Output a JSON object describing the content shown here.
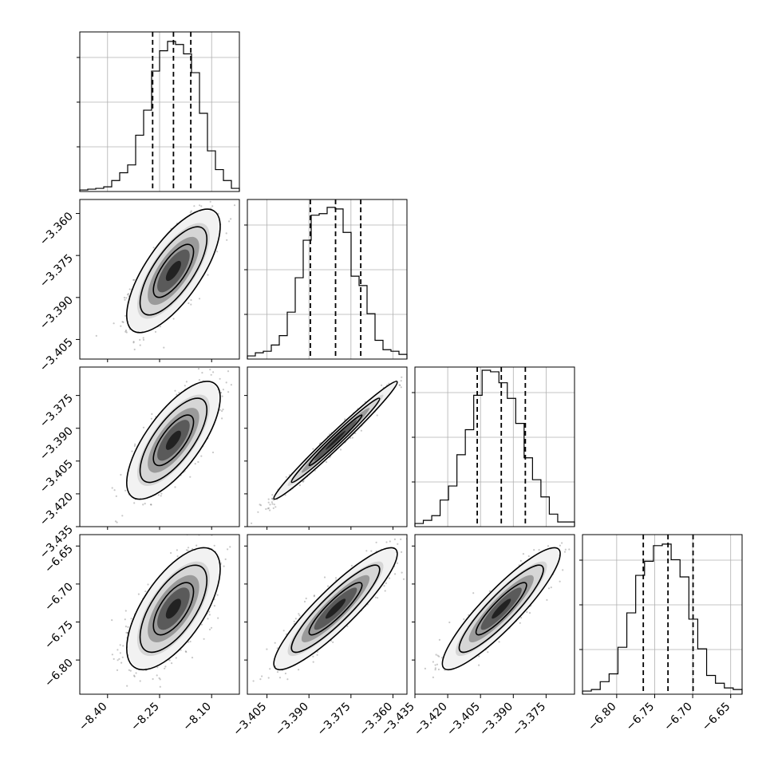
{
  "chart_data": {
    "type": "corner",
    "n_params": 4,
    "grid": true,
    "hist_quantiles": [
      0.16,
      0.5,
      0.84
    ],
    "params": [
      {
        "index": 0,
        "range": [
          -8.48,
          -8.02
        ],
        "ticks": [
          -8.4,
          -8.25,
          -8.1
        ],
        "tick_labels": [
          "−8.40",
          "−8.25",
          "−8.10"
        ],
        "quantiles": [
          -8.27,
          -8.21,
          -8.16
        ],
        "hist": [
          0.01,
          0.015,
          0.02,
          0.03,
          0.07,
          0.12,
          0.17,
          0.36,
          0.52,
          0.77,
          0.9,
          0.96,
          0.94,
          0.88,
          0.76,
          0.5,
          0.26,
          0.14,
          0.07,
          0.02
        ]
      },
      {
        "index": 1,
        "range": [
          -3.412,
          -3.355
        ],
        "ticks": [
          -3.405,
          -3.39,
          -3.375,
          -3.36
        ],
        "tick_labels": [
          "−3.405",
          "−3.390",
          "−3.375",
          "−3.360"
        ],
        "quantiles": [
          -3.3895,
          -3.3805,
          -3.3715
        ],
        "hist": [
          0.02,
          0.04,
          0.05,
          0.09,
          0.15,
          0.3,
          0.52,
          0.76,
          0.92,
          0.93,
          0.97,
          0.96,
          0.81,
          0.53,
          0.47,
          0.29,
          0.12,
          0.06,
          0.05,
          0.03
        ]
      },
      {
        "index": 2,
        "range": [
          -3.435,
          -3.362
        ],
        "ticks": [
          -3.435,
          -3.42,
          -3.405,
          -3.39,
          -3.375
        ],
        "tick_labels": [
          "−3.435",
          "−3.420",
          "−3.405",
          "−3.390",
          "−3.375"
        ],
        "quantiles": [
          -3.4065,
          -3.3955,
          -3.3845
        ],
        "hist": [
          0.02,
          0.04,
          0.07,
          0.17,
          0.26,
          0.46,
          0.62,
          0.84,
          1.0,
          0.99,
          0.92,
          0.82,
          0.66,
          0.44,
          0.3,
          0.19,
          0.08,
          0.03,
          0.03
        ]
      },
      {
        "index": 3,
        "range": [
          -6.845,
          -6.635
        ],
        "ticks": [
          -6.8,
          -6.75,
          -6.7,
          -6.65
        ],
        "tick_labels": [
          "−6.80",
          "−6.75",
          "−6.70",
          "−6.65"
        ],
        "quantiles": [
          -6.765,
          -6.7325,
          -6.6995
        ],
        "hist": [
          0.02,
          0.03,
          0.08,
          0.13,
          0.3,
          0.52,
          0.76,
          0.85,
          0.95,
          0.96,
          0.86,
          0.75,
          0.48,
          0.29,
          0.12,
          0.07,
          0.04,
          0.03
        ]
      }
    ],
    "panels_2d": [
      {
        "x": 0,
        "y": 1,
        "rho": 0.72,
        "center": [
          -8.21,
          -3.3805
        ],
        "contours": [
          [
            -8.27,
            -3.3895
          ],
          [
            -8.26,
            -3.3835
          ]
        ]
      },
      {
        "x": 0,
        "y": 2,
        "rho": 0.72,
        "center": [
          -8.21,
          -3.3955
        ],
        "contours": [
          [
            -8.27,
            -3.4065
          ],
          [
            -8.26,
            -3.3985
          ]
        ]
      },
      {
        "x": 1,
        "y": 2,
        "rho": 0.985,
        "center": [
          -3.3805,
          -3.3955
        ],
        "contours": [
          [
            -3.3895,
            -3.4065
          ],
          [
            -3.3865,
            -3.4015
          ]
        ]
      },
      {
        "x": 0,
        "y": 3,
        "rho": 0.65,
        "center": [
          -8.21,
          -6.7325
        ],
        "contours": [
          [
            -8.27,
            -6.765
          ],
          [
            -8.26,
            -6.75
          ]
        ]
      },
      {
        "x": 1,
        "y": 3,
        "rho": 0.9,
        "center": [
          -3.3805,
          -6.7325
        ],
        "contours": [
          [
            -3.3895,
            -6.765
          ],
          [
            -3.3865,
            -6.75
          ]
        ]
      },
      {
        "x": 2,
        "y": 3,
        "rho": 0.9,
        "center": [
          -3.3955,
          -6.7325
        ],
        "contours": [
          [
            -3.4065,
            -6.765
          ],
          [
            -3.4015,
            -6.75
          ]
        ]
      }
    ],
    "y_tick_labels_left": [
      {
        "row": 1,
        "labels": [
          "−3.360",
          "−3.375",
          "−3.390",
          "−3.405"
        ]
      },
      {
        "row": 2,
        "labels": [
          "−3.375",
          "−3.390",
          "−3.405",
          "−3.420",
          "−3.435"
        ]
      },
      {
        "row": 3,
        "labels": [
          "−6.65",
          "−6.70",
          "−6.75",
          "−6.80"
        ]
      }
    ]
  }
}
